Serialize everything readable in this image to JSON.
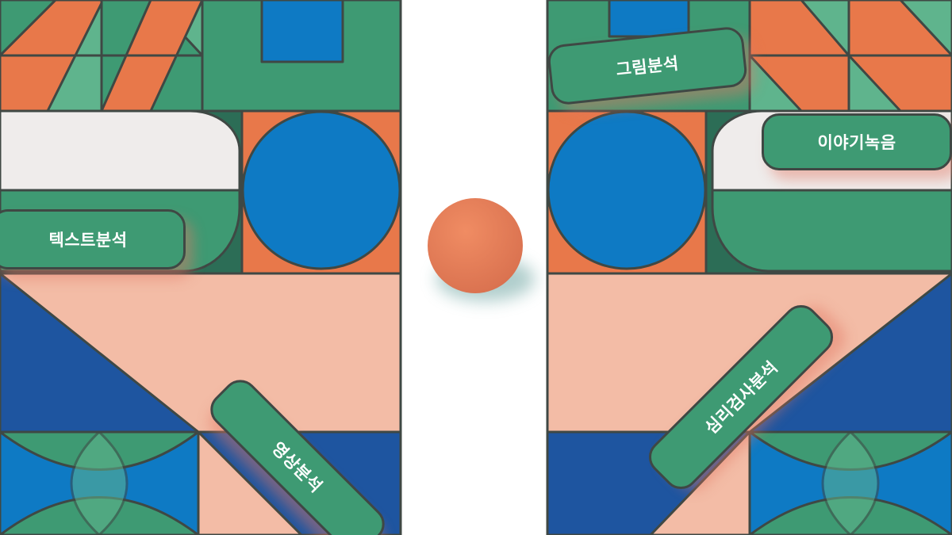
{
  "colors": {
    "green": "#3e9a73",
    "light_green": "#5fb48d",
    "orange": "#e8784a",
    "blue": "#0e7ac4",
    "navy": "#1e55a0",
    "peach": "#f3bca6",
    "cream": "#efeceb",
    "dark_green": "#2c6d56",
    "outline": "#3f4844",
    "ball": "#e6805c"
  },
  "labels": {
    "text_analysis": "텍스트분석",
    "video_analysis": "영상분석",
    "drawing_analysis": "그림분석",
    "story_recording": "이야기녹음",
    "psych_test_analysis": "심리검사분석"
  }
}
